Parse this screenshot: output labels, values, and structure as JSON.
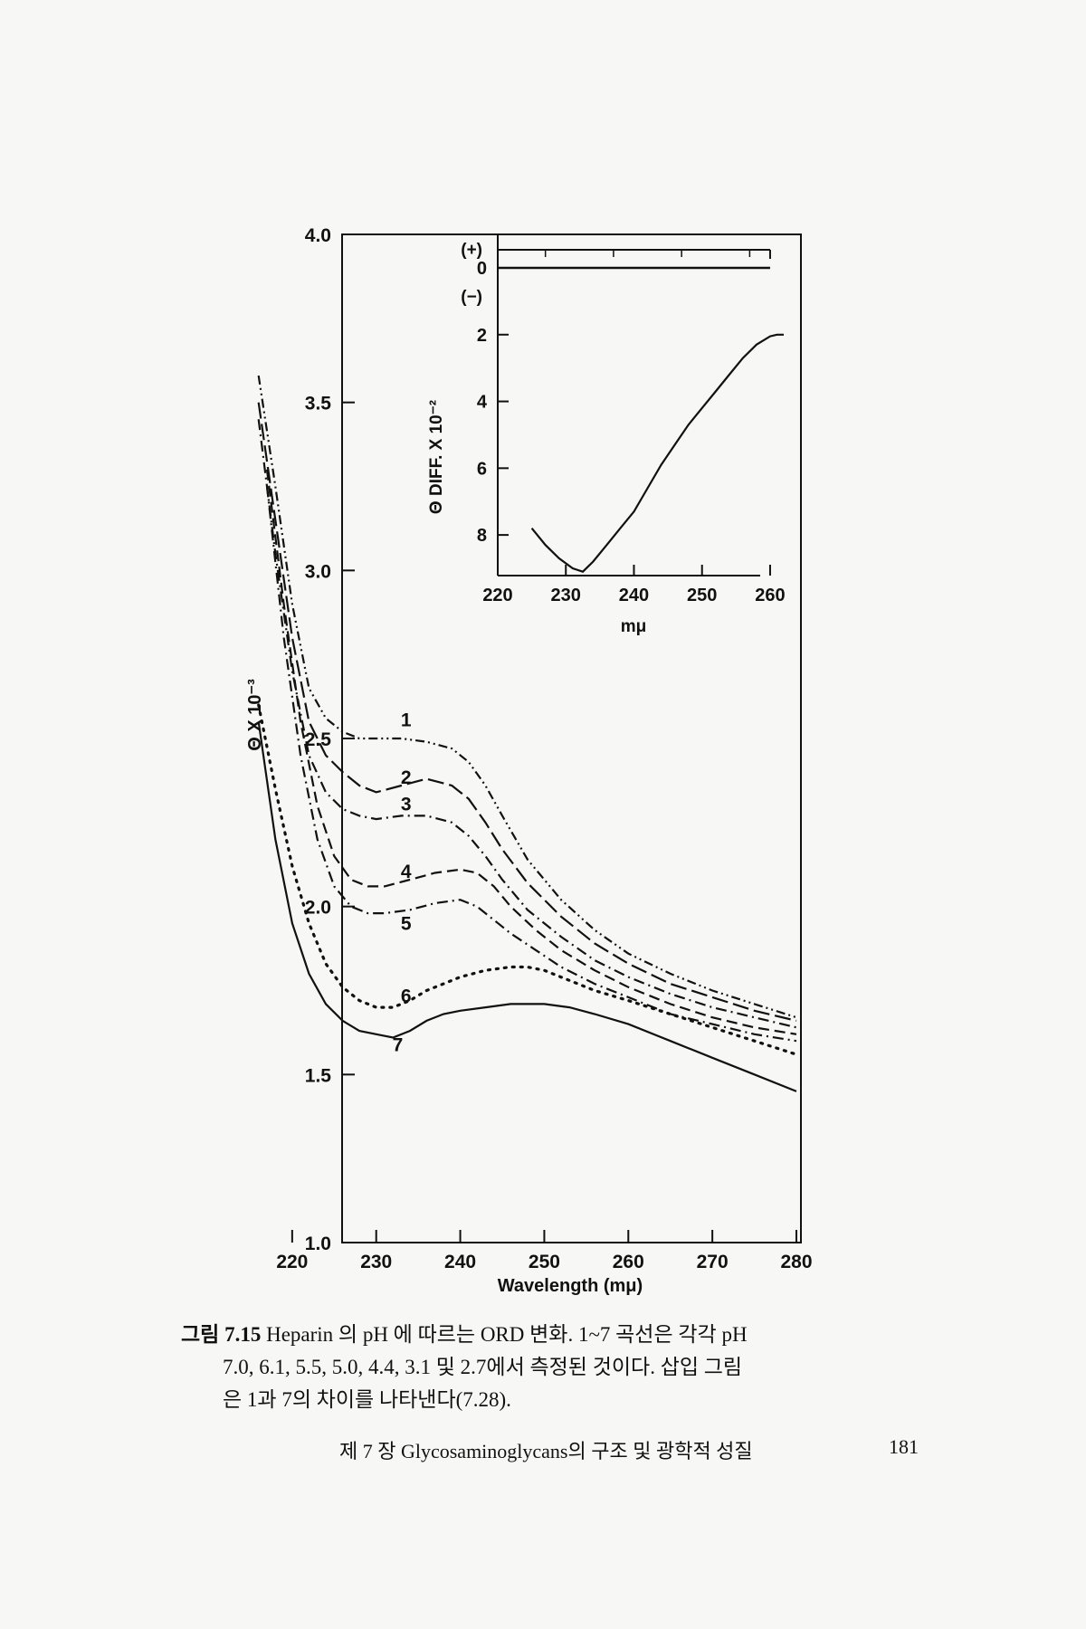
{
  "chart_data": [
    {
      "type": "line",
      "title": "",
      "xlabel": "Wavelength (mμ)",
      "ylabel": "Θ X 10⁻³",
      "xlim": [
        210,
        280
      ],
      "ylim": [
        1.0,
        4.0
      ],
      "xticks": [
        "220",
        "230",
        "240",
        "250",
        "260",
        "270",
        "280"
      ],
      "yticks": [
        "1.0",
        "1.5",
        "2.0",
        "2.5",
        "3.0",
        "3.5",
        "4.0"
      ],
      "grid": false,
      "series": [
        {
          "name": "1",
          "style": "dash-dot-dot",
          "x": [
            216,
            218,
            220,
            222,
            224,
            226,
            228,
            230,
            233,
            236,
            239,
            241,
            243,
            245,
            248,
            252,
            256,
            260,
            265,
            270,
            275,
            280
          ],
          "y": [
            3.58,
            3.25,
            2.9,
            2.65,
            2.56,
            2.52,
            2.5,
            2.5,
            2.5,
            2.49,
            2.47,
            2.43,
            2.36,
            2.27,
            2.14,
            2.02,
            1.93,
            1.86,
            1.8,
            1.75,
            1.71,
            1.67
          ]
        },
        {
          "name": "2",
          "style": "long-dash",
          "x": [
            216,
            218,
            220,
            222,
            224,
            226,
            228,
            230,
            233,
            236,
            239,
            241,
            243,
            245,
            248,
            252,
            256,
            260,
            265,
            270,
            275,
            280
          ],
          "y": [
            3.5,
            3.15,
            2.8,
            2.55,
            2.45,
            2.4,
            2.36,
            2.34,
            2.36,
            2.38,
            2.36,
            2.32,
            2.25,
            2.17,
            2.07,
            1.97,
            1.89,
            1.83,
            1.77,
            1.73,
            1.69,
            1.66
          ]
        },
        {
          "name": "3",
          "style": "dash-dot",
          "x": [
            216,
            218,
            220,
            222,
            224,
            226,
            228,
            230,
            233,
            236,
            239,
            241,
            243,
            245,
            248,
            252,
            256,
            260,
            265,
            270,
            275,
            280
          ],
          "y": [
            3.45,
            3.05,
            2.7,
            2.45,
            2.34,
            2.29,
            2.27,
            2.26,
            2.27,
            2.27,
            2.25,
            2.21,
            2.15,
            2.08,
            1.99,
            1.91,
            1.84,
            1.79,
            1.74,
            1.7,
            1.67,
            1.64
          ]
        },
        {
          "name": "4",
          "style": "dash",
          "x": [
            217,
            219,
            221,
            223,
            225,
            227,
            229,
            231,
            234,
            237,
            240,
            242,
            244,
            246,
            249,
            252,
            256,
            260,
            265,
            270,
            275,
            280
          ],
          "y": [
            3.3,
            2.9,
            2.55,
            2.3,
            2.15,
            2.08,
            2.06,
            2.06,
            2.08,
            2.1,
            2.11,
            2.1,
            2.06,
            2.0,
            1.93,
            1.87,
            1.81,
            1.76,
            1.71,
            1.67,
            1.64,
            1.62
          ]
        },
        {
          "name": "5",
          "style": "dash-dot",
          "x": [
            217,
            219,
            221,
            223,
            225,
            227,
            229,
            231,
            234,
            237,
            240,
            242,
            244,
            246,
            249,
            252,
            256,
            260,
            265,
            270,
            275,
            280
          ],
          "y": [
            3.25,
            2.8,
            2.45,
            2.2,
            2.06,
            2.0,
            1.98,
            1.98,
            1.99,
            2.01,
            2.02,
            2.0,
            1.96,
            1.92,
            1.87,
            1.82,
            1.77,
            1.73,
            1.68,
            1.65,
            1.62,
            1.6
          ]
        },
        {
          "name": "6",
          "style": "dots",
          "x": [
            216,
            218,
            220,
            222,
            224,
            226,
            228,
            230,
            232,
            234,
            236,
            238,
            240,
            243,
            246,
            248,
            250,
            253,
            256,
            260,
            265,
            270,
            275,
            280
          ],
          "y": [
            2.6,
            2.35,
            2.12,
            1.95,
            1.83,
            1.76,
            1.72,
            1.7,
            1.7,
            1.72,
            1.75,
            1.77,
            1.79,
            1.81,
            1.82,
            1.82,
            1.81,
            1.78,
            1.75,
            1.72,
            1.68,
            1.64,
            1.6,
            1.56
          ]
        },
        {
          "name": "7",
          "style": "solid",
          "x": [
            216,
            218,
            220,
            222,
            224,
            226,
            228,
            230,
            232,
            234,
            236,
            238,
            240,
            243,
            246,
            248,
            250,
            253,
            256,
            260,
            265,
            270,
            275,
            280
          ],
          "y": [
            2.55,
            2.2,
            1.95,
            1.8,
            1.71,
            1.66,
            1.63,
            1.62,
            1.61,
            1.63,
            1.66,
            1.68,
            1.69,
            1.7,
            1.71,
            1.71,
            1.71,
            1.7,
            1.68,
            1.65,
            1.6,
            1.55,
            1.5,
            1.45
          ]
        }
      ]
    },
    {
      "type": "line",
      "title": "",
      "xlabel": "mμ",
      "ylabel": "Θ DIFF. X 10⁻²",
      "xlim": [
        220,
        262
      ],
      "ylim": [
        0,
        9.2
      ],
      "y_inverted": true,
      "xticks": [
        "220",
        "230",
        "240",
        "250",
        "260"
      ],
      "yticks": [
        "0",
        "2",
        "4",
        "6",
        "8"
      ],
      "sign_labels": [
        "(+)",
        "(−)"
      ],
      "reference_lines": {
        "positive_line_x": [
          220,
          260
        ],
        "zero_line_x": [
          220,
          260
        ]
      },
      "series": [
        {
          "name": "",
          "x": [
            225,
            227,
            229,
            231,
            232.5,
            234,
            236,
            238,
            240,
            242,
            244,
            246,
            248,
            250,
            252,
            254,
            256,
            258,
            260,
            261,
            262
          ],
          "y": [
            7.8,
            8.3,
            8.7,
            9.0,
            9.1,
            8.8,
            8.3,
            7.8,
            7.3,
            6.6,
            5.9,
            5.3,
            4.7,
            4.2,
            3.7,
            3.2,
            2.7,
            2.3,
            2.05,
            2.0,
            2.0
          ]
        }
      ]
    }
  ],
  "curve_labels": [
    "1",
    "2",
    "3",
    "4",
    "5",
    "6",
    "7"
  ],
  "caption": {
    "label": "그림 7.15",
    "line1": " Heparin 의 pH 에 따르는 ORD 변화. 1~7 곡선은 각각 pH",
    "line2": "7.0, 6.1, 5.5, 5.0, 4.4, 3.1 및 2.7에서 측정된 것이다. 삽입 그림",
    "line3": "은 1과 7의 차이를 나타낸다(7.28)."
  },
  "footer": {
    "chapter": "제 7 장  Glycosaminoglycans의 구조 및 광학적 성질",
    "page_number": "181"
  }
}
